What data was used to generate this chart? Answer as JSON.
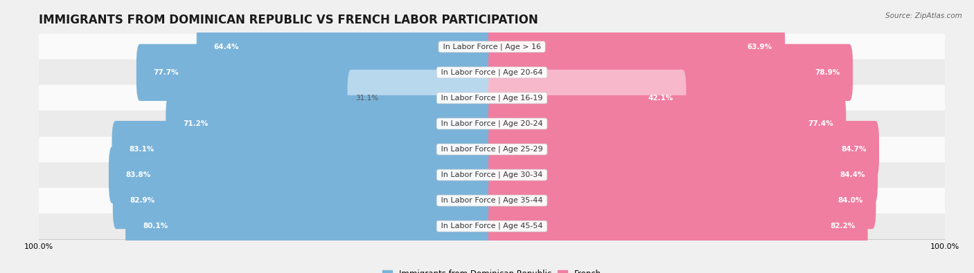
{
  "title": "IMMIGRANTS FROM DOMINICAN REPUBLIC VS FRENCH LABOR PARTICIPATION",
  "source": "Source: ZipAtlas.com",
  "categories": [
    "In Labor Force | Age > 16",
    "In Labor Force | Age 20-64",
    "In Labor Force | Age 16-19",
    "In Labor Force | Age 20-24",
    "In Labor Force | Age 25-29",
    "In Labor Force | Age 30-34",
    "In Labor Force | Age 35-44",
    "In Labor Force | Age 45-54"
  ],
  "dominican_values": [
    64.4,
    77.7,
    31.1,
    71.2,
    83.1,
    83.8,
    82.9,
    80.1
  ],
  "french_values": [
    63.9,
    78.9,
    42.1,
    77.4,
    84.7,
    84.4,
    84.0,
    82.2
  ],
  "dominican_color": "#7ab3d9",
  "french_color": "#f07ea0",
  "dominican_color_light": "#b8d8ee",
  "french_color_light": "#f8b8cc",
  "background_color": "#f0f0f0",
  "row_bg_light": "#fafafa",
  "row_bg_dark": "#ebebeb",
  "max_value": 100.0,
  "legend_dominican": "Immigrants from Dominican Republic",
  "legend_french": "French",
  "title_fontsize": 12,
  "label_fontsize": 8,
  "value_fontsize": 7.5,
  "source_fontsize": 7.5
}
